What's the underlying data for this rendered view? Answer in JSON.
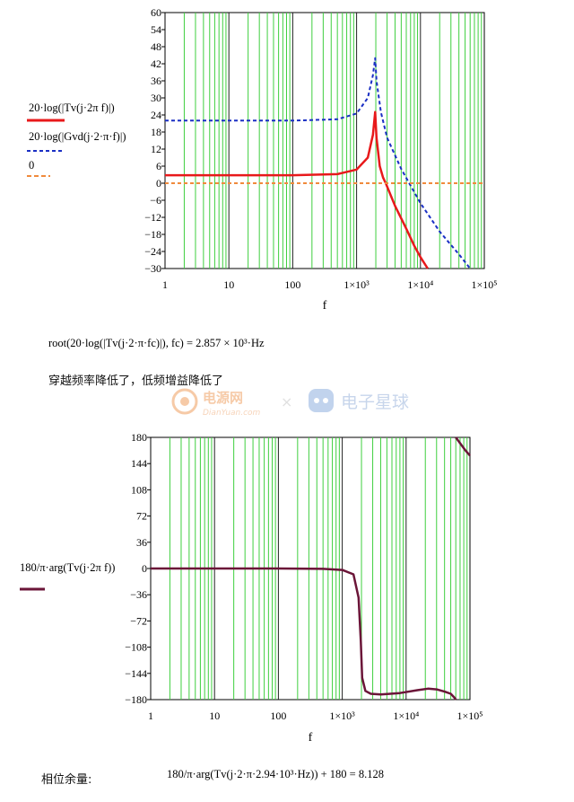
{
  "chart_data": [
    {
      "type": "line",
      "x_scale": "log",
      "xlim": [
        1,
        100000
      ],
      "ylim": [
        -30,
        60
      ],
      "xlabel": "f",
      "x_ticks": [
        "1",
        "10",
        "100",
        "1×10³",
        "1×10⁴",
        "1×10⁵"
      ],
      "y_ticks": [
        "60",
        "54",
        "48",
        "42",
        "36",
        "30",
        "24",
        "18",
        "12",
        "6",
        "0",
        "−6",
        "−12",
        "−18",
        "−24",
        "−30"
      ],
      "grid": true,
      "legend_placement": "left",
      "series": [
        {
          "name": "20·log(|Tv(j·2π f)|)",
          "color": "#e8191b",
          "style": "solid",
          "points": [
            [
              1,
              2.8
            ],
            [
              10,
              2.8
            ],
            [
              100,
              2.8
            ],
            [
              500,
              3.2
            ],
            [
              1000,
              4.8
            ],
            [
              1500,
              9
            ],
            [
              1800,
              17
            ],
            [
              1950,
              25
            ],
            [
              2050,
              16
            ],
            [
              2300,
              6
            ],
            [
              2600,
              2
            ],
            [
              2857,
              0
            ],
            [
              4000,
              -8
            ],
            [
              6000,
              -16
            ],
            [
              8000,
              -22
            ],
            [
              10000,
              -26
            ],
            [
              13000,
              -30
            ]
          ]
        },
        {
          "name": "20·log(|Gvd(j·2·π·f)|)",
          "color": "#1a2fc4",
          "style": "dashed",
          "points": [
            [
              1,
              22
            ],
            [
              10,
              22
            ],
            [
              100,
              22
            ],
            [
              500,
              22.5
            ],
            [
              1000,
              24.5
            ],
            [
              1500,
              30
            ],
            [
              1800,
              38
            ],
            [
              1950,
              44
            ],
            [
              2050,
              36
            ],
            [
              2400,
              25
            ],
            [
              3000,
              16
            ],
            [
              5000,
              5
            ],
            [
              10000,
              -7
            ],
            [
              20000,
              -17
            ],
            [
              40000,
              -25
            ],
            [
              60000,
              -30
            ]
          ]
        },
        {
          "name": "0",
          "color": "#f08a3c",
          "style": "dashed",
          "points": [
            [
              1,
              0
            ],
            [
              100000,
              0
            ]
          ]
        }
      ]
    },
    {
      "type": "line",
      "x_scale": "log",
      "xlim": [
        1,
        100000
      ],
      "ylim": [
        -180,
        180
      ],
      "xlabel": "f",
      "x_ticks": [
        "1",
        "10",
        "100",
        "1×10³",
        "1×10⁴",
        "1×10⁵"
      ],
      "y_ticks": [
        "180",
        "144",
        "108",
        "72",
        "36",
        "0",
        "−36",
        "−72",
        "−108",
        "−144",
        "−180"
      ],
      "grid": true,
      "legend_placement": "left",
      "series": [
        {
          "name": "180/π·arg(Tv(j·2π f))",
          "color": "#6b1538",
          "style": "solid",
          "points": [
            [
              1,
              0
            ],
            [
              10,
              0
            ],
            [
              100,
              0
            ],
            [
              500,
              -0.5
            ],
            [
              1000,
              -2
            ],
            [
              1500,
              -8
            ],
            [
              1800,
              -40
            ],
            [
              1950,
              -100
            ],
            [
              2050,
              -150
            ],
            [
              2300,
              -168
            ],
            [
              2800,
              -172
            ],
            [
              4000,
              -173
            ],
            [
              8000,
              -171
            ],
            [
              15000,
              -167
            ],
            [
              22000,
              -165
            ],
            [
              30000,
              -166
            ],
            [
              40000,
              -169
            ],
            [
              50000,
              -172
            ],
            [
              58000,
              -178
            ],
            [
              60000,
              180
            ],
            [
              70000,
              172
            ],
            [
              85000,
              162
            ],
            [
              100000,
              155
            ]
          ]
        }
      ]
    }
  ],
  "text": {
    "root_expression": "root(20·log(|Tv(j·2·π·fc)|), fc) = 2.857 × 10³·Hz",
    "note_cn": "穿越频率降低了，低频增益降低了",
    "phase_margin_label": "相位余量:",
    "phase_margin_expression": "180/π·arg(Tv(j·2·π·2.94·10³·Hz)) + 180 = 8.128"
  },
  "watermark": {
    "left_logo_text": "电源网",
    "left_logo_sub": "DianYuan.com",
    "separator": "×",
    "right_logo_text": "电子星球"
  }
}
